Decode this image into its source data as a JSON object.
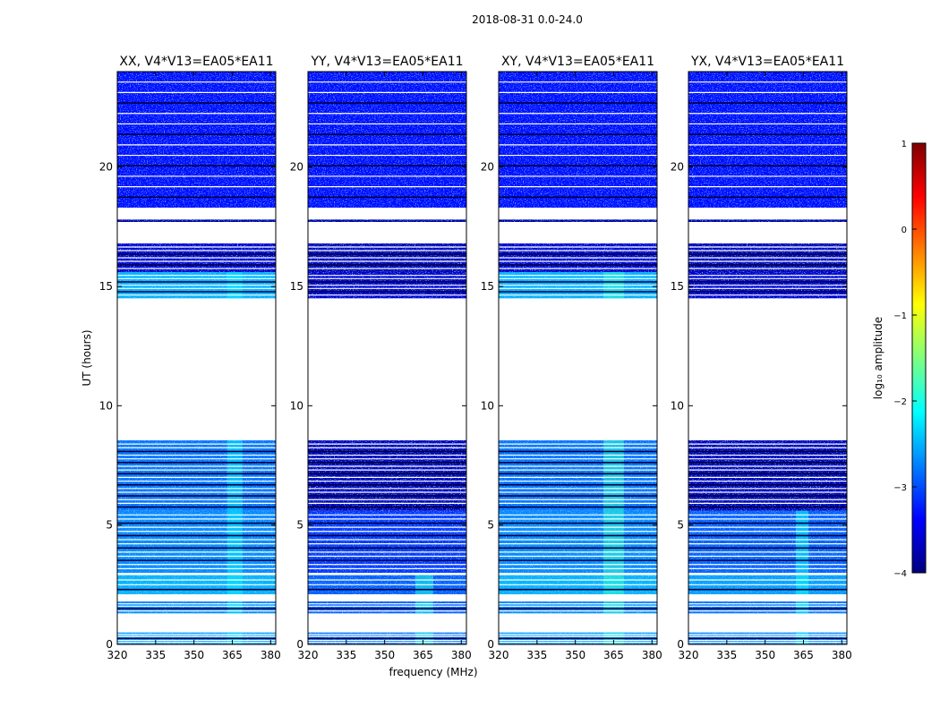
{
  "chart_data": {
    "type": "heatmap",
    "suptitle": "2018-08-31 0.0-24.0",
    "xlabel": "frequency (MHz)",
    "ylabel": "UT (hours)",
    "xlim": [
      320,
      382
    ],
    "ylim": [
      0,
      24
    ],
    "xticks": [
      "320",
      "335",
      "350",
      "365",
      "380"
    ],
    "yticks": [
      "0",
      "5",
      "10",
      "15",
      "20"
    ],
    "xtick_values": [
      320,
      335,
      350,
      365,
      380
    ],
    "ytick_values": [
      0,
      5,
      10,
      15,
      20
    ],
    "colorbar": {
      "label": "log₁₀ amplitude",
      "range": [
        -4,
        1
      ],
      "ticks": [
        "1",
        "0",
        "−1",
        "−2",
        "−3",
        "−4"
      ],
      "tick_values": [
        1,
        0,
        -1,
        -2,
        -3,
        -4
      ],
      "colormap": "jet",
      "colors": [
        "#00007f",
        "#0000ff",
        "#007fff",
        "#00ffff",
        "#7fff7f",
        "#ffff00",
        "#ff7f00",
        "#ff0000",
        "#7f0000"
      ]
    },
    "panels": [
      {
        "title": "XX, V4*V13=EA05*EA11",
        "blocks": [
          {
            "start": 0.0,
            "end": 0.5,
            "level": -2.6,
            "lines": 5
          },
          {
            "start": 1.3,
            "end": 1.8,
            "level": -2.7,
            "lines": 4
          },
          {
            "start": 2.1,
            "end": 2.9,
            "level": -2.5,
            "lines": 3
          },
          {
            "start": 3.0,
            "end": 5.6,
            "level": -2.7,
            "lines": 14
          },
          {
            "start": 5.6,
            "end": 8.55,
            "level": -2.8,
            "lines": 18
          },
          {
            "start": 14.5,
            "end": 15.6,
            "level": -2.5,
            "lines": 7
          },
          {
            "start": 15.6,
            "end": 16.8,
            "level": -3.6,
            "lines": 7
          },
          {
            "start": 17.7,
            "end": 17.8,
            "level": -3.8,
            "lines": 0
          },
          {
            "start": 18.3,
            "end": 24.0,
            "level": -3.3,
            "lines": 12
          }
        ],
        "bright_band": {
          "from": 363,
          "to": 369,
          "level": -2.2
        }
      },
      {
        "title": "YY, V4*V13=EA05*EA11",
        "blocks": [
          {
            "start": 0.0,
            "end": 0.5,
            "level": -2.8,
            "lines": 5
          },
          {
            "start": 1.3,
            "end": 1.8,
            "level": -2.9,
            "lines": 4
          },
          {
            "start": 2.1,
            "end": 2.9,
            "level": -2.9,
            "lines": 3
          },
          {
            "start": 3.0,
            "end": 5.6,
            "level": -3.1,
            "lines": 14
          },
          {
            "start": 5.6,
            "end": 8.55,
            "level": -3.7,
            "lines": 18
          },
          {
            "start": 14.5,
            "end": 15.6,
            "level": -3.6,
            "lines": 7
          },
          {
            "start": 15.6,
            "end": 16.8,
            "level": -3.7,
            "lines": 7
          },
          {
            "start": 17.7,
            "end": 17.8,
            "level": -3.8,
            "lines": 0
          },
          {
            "start": 18.3,
            "end": 24.0,
            "level": -3.3,
            "lines": 12
          }
        ],
        "bright_band": {
          "from": 362,
          "to": 369,
          "level": -2.0
        }
      },
      {
        "title": "XY, V4*V13=EA05*EA11",
        "blocks": [
          {
            "start": 0.0,
            "end": 0.5,
            "level": -2.6,
            "lines": 5
          },
          {
            "start": 1.3,
            "end": 1.8,
            "level": -2.7,
            "lines": 4
          },
          {
            "start": 2.1,
            "end": 2.9,
            "level": -2.5,
            "lines": 3
          },
          {
            "start": 3.0,
            "end": 5.6,
            "level": -2.7,
            "lines": 14
          },
          {
            "start": 5.6,
            "end": 8.55,
            "level": -2.8,
            "lines": 18
          },
          {
            "start": 14.5,
            "end": 15.6,
            "level": -2.5,
            "lines": 7
          },
          {
            "start": 15.6,
            "end": 16.8,
            "level": -3.6,
            "lines": 7
          },
          {
            "start": 17.7,
            "end": 17.8,
            "level": -3.8,
            "lines": 0
          },
          {
            "start": 18.3,
            "end": 24.0,
            "level": -3.3,
            "lines": 12
          }
        ],
        "bright_band": {
          "from": 361,
          "to": 369,
          "level": -1.9
        }
      },
      {
        "title": "YX, V4*V13=EA05*EA11",
        "blocks": [
          {
            "start": 0.0,
            "end": 0.5,
            "level": -2.7,
            "lines": 5
          },
          {
            "start": 1.3,
            "end": 1.8,
            "level": -2.8,
            "lines": 4
          },
          {
            "start": 2.1,
            "end": 2.9,
            "level": -2.6,
            "lines": 3
          },
          {
            "start": 3.0,
            "end": 5.6,
            "level": -2.9,
            "lines": 14
          },
          {
            "start": 5.6,
            "end": 8.55,
            "level": -3.7,
            "lines": 18
          },
          {
            "start": 14.5,
            "end": 15.6,
            "level": -3.6,
            "lines": 7
          },
          {
            "start": 15.6,
            "end": 16.8,
            "level": -3.7,
            "lines": 7
          },
          {
            "start": 17.7,
            "end": 17.8,
            "level": -3.8,
            "lines": 0
          },
          {
            "start": 18.3,
            "end": 24.0,
            "level": -3.3,
            "lines": 12
          }
        ],
        "bright_band": {
          "from": 362,
          "to": 367,
          "level": -2.1
        }
      }
    ]
  }
}
